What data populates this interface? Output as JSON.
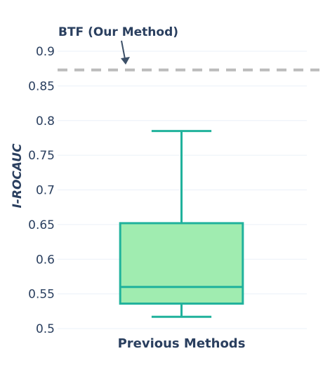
{
  "chart_data": {
    "type": "box",
    "ylabel": "I-ROCAUC",
    "ylim": [
      0.5,
      0.9
    ],
    "yticks": [
      "0.5",
      "0.55",
      "0.6",
      "0.65",
      "0.7",
      "0.75",
      "0.8",
      "0.85",
      "0.9"
    ],
    "grid": true,
    "categories": [
      "Previous Methods"
    ],
    "series": [
      {
        "category": "Previous Methods",
        "min": 0.517,
        "q1": 0.536,
        "median": 0.56,
        "q3": 0.652,
        "max": 0.785,
        "fill_color": "#a0ecb0",
        "line_color": "#20b29c"
      }
    ],
    "reference_line": {
      "value": 0.873,
      "style": "dashed",
      "color": "#bbbbbb"
    },
    "annotations": [
      {
        "text": "BTF (Our Method)",
        "points_to": 0.873
      }
    ]
  }
}
